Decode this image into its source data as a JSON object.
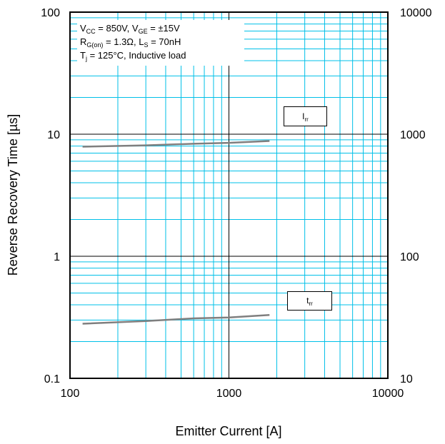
{
  "chart_data": {
    "type": "line",
    "xlabel": "Emitter Current [A]",
    "ylabel": "Reverse Recovery Time [µs]",
    "x_scale": "log",
    "y_scale": "log",
    "xlim": [
      100,
      10000
    ],
    "ylim": [
      0.1,
      100
    ],
    "y2lim": [
      10,
      10000
    ],
    "x_ticks": [
      "100",
      "1000",
      "10000"
    ],
    "y_ticks": [
      "0.1",
      "1",
      "10",
      "100"
    ],
    "y2_ticks": [
      "10",
      "100",
      "1000",
      "10000"
    ],
    "grid": true,
    "series": [
      {
        "name": "Irr",
        "axis": "right",
        "x": [
          120,
          300,
          600,
          1000,
          1800
        ],
        "values": [
          790,
          810,
          835,
          850,
          880
        ]
      },
      {
        "name": "trr",
        "axis": "left",
        "x": [
          120,
          300,
          600,
          1000,
          1800
        ],
        "values": [
          0.28,
          0.295,
          0.31,
          0.315,
          0.33
        ]
      }
    ],
    "conditions": {
      "line1": {
        "a": "V",
        "a_sub": "CC",
        "b": " = 850V, V",
        "b_sub": "GE",
        "c": " = ±15V"
      },
      "line2": {
        "a": "R",
        "a_sub": "G(on)",
        "b": " = 1.3Ω, L",
        "b_sub": "S",
        "c": " = 70nH"
      },
      "line3": {
        "a": "T",
        "a_sub": "j",
        "b": " = 125°C, Inductive load"
      }
    },
    "labels": {
      "irr": {
        "main": "I",
        "sub": "rr"
      },
      "trr": {
        "main": "t",
        "sub": "rr"
      }
    },
    "colors": {
      "grid": "#00c0e8",
      "major_grid": "#000000",
      "line": "#7f7f7f"
    }
  }
}
